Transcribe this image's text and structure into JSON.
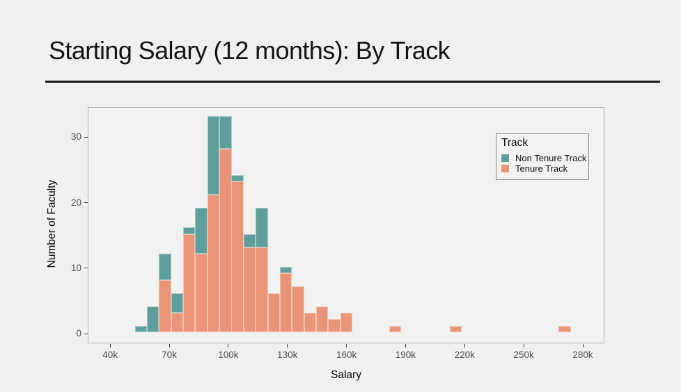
{
  "page": {
    "title": "Starting Salary (12 months): By Track"
  },
  "chart_data": {
    "type": "bar",
    "subtype": "stacked-histogram",
    "title": "Starting Salary (12 months): By Track",
    "xlabel": "Salary",
    "ylabel": "Number of Faculty",
    "x_tick_labels": [
      "40k",
      "70k",
      "100k",
      "130k",
      "160k",
      "190k",
      "220k",
      "250k",
      "280k"
    ],
    "x_tick_values_k": [
      40,
      70,
      100,
      130,
      160,
      190,
      220,
      250,
      280
    ],
    "y_ticks": [
      0,
      10,
      20,
      30
    ],
    "xlim_k": [
      30,
      292
    ],
    "ylim": [
      -1.5,
      34.5
    ],
    "grid": false,
    "bin_width_k": 6.15,
    "colors": {
      "non_tenure_track": "#5E9E9C",
      "tenure_track": "#EA9478",
      "panel_background": "#F2F2F1",
      "page_background": "#F0F0EE"
    },
    "legend": {
      "title": "Track",
      "position": "inside-top-right",
      "entries": [
        {
          "label": "Non Tenure Track",
          "color": "#5E9E9C"
        },
        {
          "label": "Tenure Track",
          "color": "#EA9478"
        }
      ]
    },
    "stacking_note": "Tenure Track (salmon) on bottom, Non Tenure Track (teal) stacked on top",
    "bins": [
      {
        "start_k": 52.6,
        "tenure_track": 0,
        "non_tenure_track": 1
      },
      {
        "start_k": 58.7,
        "tenure_track": 0,
        "non_tenure_track": 4
      },
      {
        "start_k": 64.8,
        "tenure_track": 8,
        "non_tenure_track": 4
      },
      {
        "start_k": 71.0,
        "tenure_track": 3,
        "non_tenure_track": 3
      },
      {
        "start_k": 77.1,
        "tenure_track": 15,
        "non_tenure_track": 1
      },
      {
        "start_k": 83.2,
        "tenure_track": 12,
        "non_tenure_track": 7
      },
      {
        "start_k": 89.4,
        "tenure_track": 21,
        "non_tenure_track": 12
      },
      {
        "start_k": 95.5,
        "tenure_track": 28,
        "non_tenure_track": 5
      },
      {
        "start_k": 101.6,
        "tenure_track": 23,
        "non_tenure_track": 1
      },
      {
        "start_k": 107.8,
        "tenure_track": 13,
        "non_tenure_track": 2
      },
      {
        "start_k": 113.9,
        "tenure_track": 13,
        "non_tenure_track": 6
      },
      {
        "start_k": 120.0,
        "tenure_track": 6,
        "non_tenure_track": 0
      },
      {
        "start_k": 126.2,
        "tenure_track": 9,
        "non_tenure_track": 1
      },
      {
        "start_k": 132.3,
        "tenure_track": 7,
        "non_tenure_track": 0
      },
      {
        "start_k": 138.4,
        "tenure_track": 3,
        "non_tenure_track": 0
      },
      {
        "start_k": 144.6,
        "tenure_track": 4,
        "non_tenure_track": 0
      },
      {
        "start_k": 150.7,
        "tenure_track": 2,
        "non_tenure_track": 0
      },
      {
        "start_k": 156.8,
        "tenure_track": 3,
        "non_tenure_track": 0
      },
      {
        "start_k": 181.6,
        "tenure_track": 1,
        "non_tenure_track": 0
      },
      {
        "start_k": 212.3,
        "tenure_track": 1,
        "non_tenure_track": 0
      },
      {
        "start_k": 267.7,
        "tenure_track": 1,
        "non_tenure_track": 0
      }
    ]
  }
}
